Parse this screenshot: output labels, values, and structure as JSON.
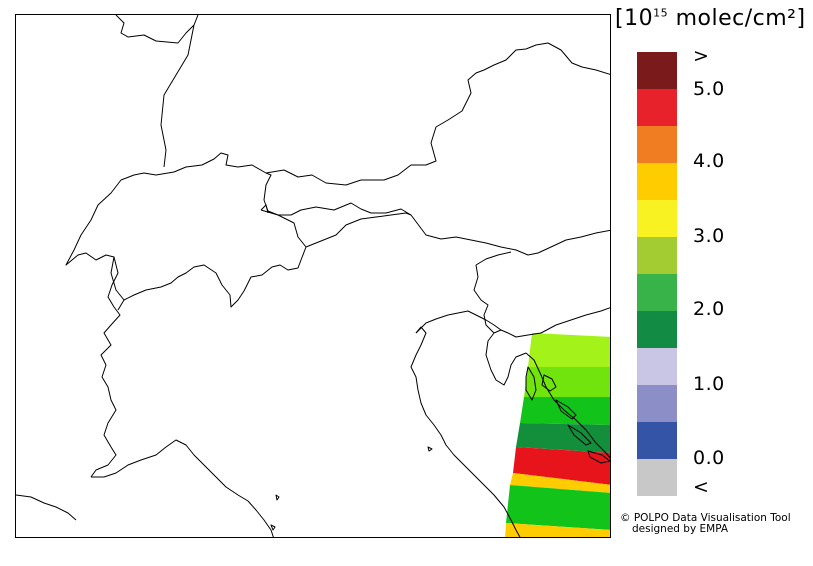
{
  "legend": {
    "unit_prefix": "[10",
    "unit_exp": "15",
    "unit_suffix": " molec/cm²]",
    "colors": [
      "#7b1a1a",
      "#e8222b",
      "#f07d22",
      "#ffcc00",
      "#f8f222",
      "#a3cc33",
      "#37b34a",
      "#128b44",
      "#c9c5e4",
      "#8c8fc7",
      "#3454a6",
      "#c8c8c8"
    ],
    "ticks": [
      ">",
      "5.0",
      "4.0",
      "3.0",
      "2.0",
      "1.0",
      "0.0",
      "<"
    ]
  },
  "credit": {
    "line1": "© POLPO Data Visualisation Tool",
    "line2": "designed by EMPA"
  },
  "swath": {
    "bands": [
      {
        "color": "#a3f21a"
      },
      {
        "color": "#72e40d"
      },
      {
        "color": "#12c31a"
      },
      {
        "color": "#138f3c"
      },
      {
        "color": "#e8141c"
      },
      {
        "color": "#ffcc00"
      },
      {
        "color": "#12c31a"
      },
      {
        "color": "#ffcc00"
      }
    ]
  }
}
